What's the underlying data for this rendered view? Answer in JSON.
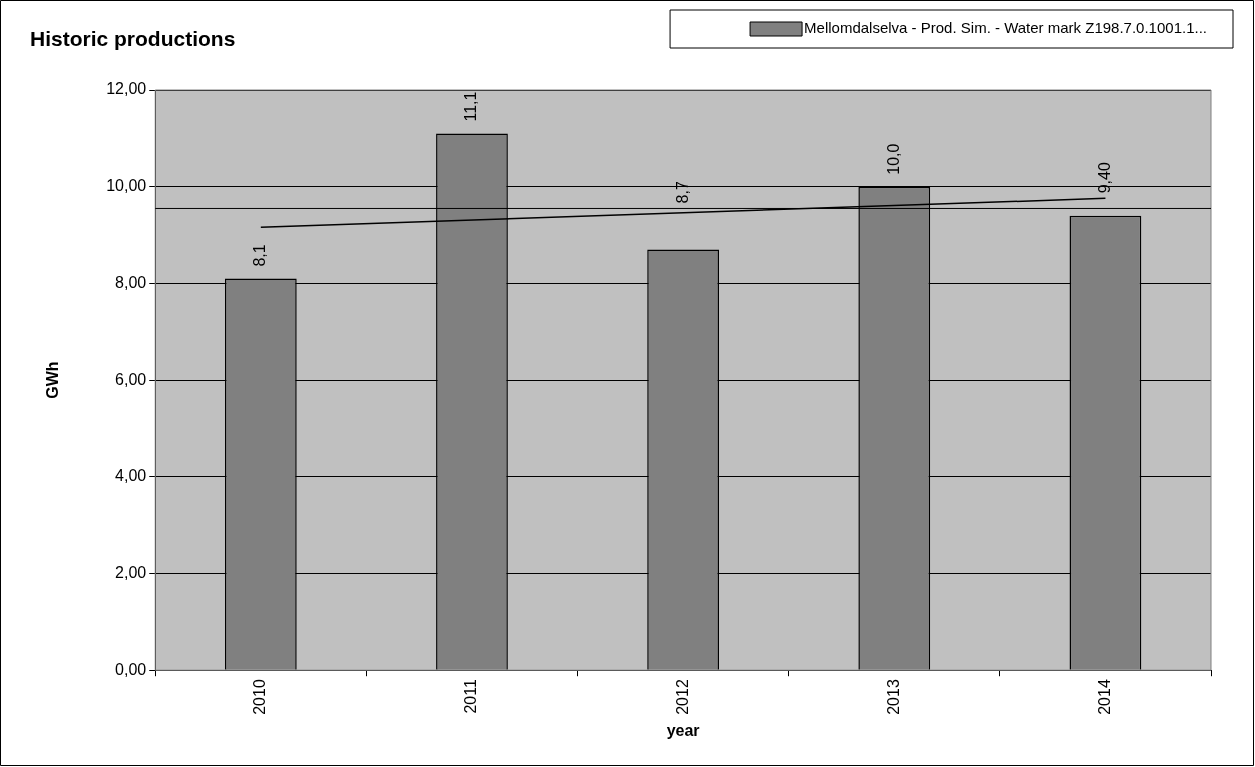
{
  "chart_data": {
    "type": "bar",
    "title": "Historic productions",
    "xlabel": "year",
    "ylabel": "GWh",
    "categories": [
      "2010",
      "2011",
      "2012",
      "2013",
      "2014"
    ],
    "series": [
      {
        "name": "Mellomdalselva - Prod. Sim. - Water mark Z198.7.0.1001.1...",
        "color": "#808080",
        "values": [
          8.1,
          11.1,
          8.7,
          10.0,
          9.4
        ],
        "value_labels": [
          "8,1",
          "11,1",
          "8,7",
          "10,0",
          "9,40"
        ]
      },
      {
        "type": "line",
        "color": "#000000",
        "values": [
          9.16,
          null,
          null,
          null,
          9.76
        ]
      }
    ],
    "ref_lines": [
      {
        "axis": "y",
        "value": 9.55,
        "color": "#000000"
      }
    ],
    "ylim": [
      0,
      12
    ],
    "yticks": [
      {
        "value": 0,
        "label": "0,00"
      },
      {
        "value": 2,
        "label": "2,00"
      },
      {
        "value": 4,
        "label": "4,00"
      },
      {
        "value": 6,
        "label": "6,00"
      },
      {
        "value": 8,
        "label": "8,00"
      },
      {
        "value": 10,
        "label": "10,00"
      },
      {
        "value": 12,
        "label": "12,00"
      }
    ],
    "grid": "y",
    "legend": "top right"
  }
}
